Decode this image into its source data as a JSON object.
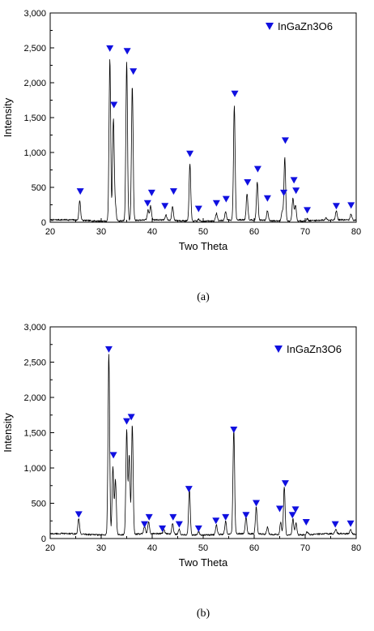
{
  "colors": {
    "marker": "#1010e0",
    "line": "#000000",
    "axis": "#000000"
  },
  "chart_data": [
    {
      "type": "line",
      "caption": "(a)",
      "xlabel": "Two Theta",
      "ylabel": "Intensity",
      "xlim": [
        20,
        80
      ],
      "ylim": [
        0,
        3000
      ],
      "xticks": [
        "20",
        "30",
        "40",
        "50",
        "60",
        "70",
        "80"
      ],
      "yticks": [
        "0",
        "500",
        "1,000",
        "1,500",
        "2,000",
        "2,500",
        "3,000"
      ],
      "legend": {
        "label": "InGaZn3O6",
        "marker": "down-triangle",
        "placement": "top-right"
      },
      "series": [
        {
          "baseline": 25,
          "peaks": [
            [
              25.8,
              280
            ],
            [
              31.7,
              2330
            ],
            [
              32.4,
              1460
            ],
            [
              32.8,
              200
            ],
            [
              35.0,
              2270
            ],
            [
              36.1,
              1930
            ],
            [
              39.2,
              140
            ],
            [
              39.7,
              200
            ],
            [
              42.7,
              70
            ],
            [
              44.0,
              200
            ],
            [
              47.4,
              820
            ],
            [
              49.1,
              30
            ],
            [
              52.6,
              110
            ],
            [
              54.4,
              130
            ],
            [
              56.1,
              1630
            ],
            [
              58.6,
              380
            ],
            [
              60.6,
              550
            ],
            [
              62.6,
              140
            ],
            [
              65.5,
              150
            ],
            [
              66.0,
              910
            ],
            [
              67.6,
              330
            ],
            [
              68.1,
              230
            ],
            [
              70.4,
              30
            ],
            [
              74.1,
              30
            ],
            [
              76.1,
              130
            ],
            [
              79.0,
              90
            ]
          ]
        }
      ],
      "markers": [
        [
          25.9,
          440
        ],
        [
          31.7,
          2490
        ],
        [
          32.5,
          1680
        ],
        [
          35.1,
          2450
        ],
        [
          36.3,
          2160
        ],
        [
          39.1,
          270
        ],
        [
          39.9,
          420
        ],
        [
          42.5,
          230
        ],
        [
          44.2,
          440
        ],
        [
          47.4,
          980
        ],
        [
          49.1,
          190
        ],
        [
          52.6,
          270
        ],
        [
          54.5,
          330
        ],
        [
          56.2,
          1840
        ],
        [
          58.7,
          570
        ],
        [
          60.7,
          760
        ],
        [
          62.6,
          340
        ],
        [
          65.8,
          420
        ],
        [
          66.1,
          1170
        ],
        [
          67.8,
          600
        ],
        [
          68.2,
          450
        ],
        [
          70.4,
          170
        ],
        [
          76.1,
          230
        ],
        [
          79.0,
          240
        ]
      ]
    },
    {
      "type": "line",
      "caption": "(b)",
      "xlabel": "Two Theta",
      "ylabel": "Intensity",
      "xlim": [
        20,
        80
      ],
      "ylim": [
        0,
        3000
      ],
      "xticks": [
        "20",
        "30",
        "40",
        "50",
        "60",
        "70",
        "80"
      ],
      "yticks": [
        "0",
        "500",
        "1,000",
        "1,500",
        "2,000",
        "2,500",
        "3,000"
      ],
      "legend": {
        "label": "InGaZn3O6",
        "marker": "down-triangle",
        "placement": "top-right"
      },
      "series": [
        {
          "baseline": 60,
          "peaks": [
            [
              25.6,
              220
            ],
            [
              31.5,
              2560
            ],
            [
              32.3,
              960
            ],
            [
              32.8,
              780
            ],
            [
              35.0,
              1480
            ],
            [
              35.5,
              1120
            ],
            [
              36.1,
              1550
            ],
            [
              38.5,
              110
            ],
            [
              39.3,
              170
            ],
            [
              42.3,
              60
            ],
            [
              44.0,
              150
            ],
            [
              45.3,
              70
            ],
            [
              47.3,
              640
            ],
            [
              49.1,
              50
            ],
            [
              52.6,
              140
            ],
            [
              54.4,
              180
            ],
            [
              56.0,
              1490
            ],
            [
              58.4,
              240
            ],
            [
              60.4,
              380
            ],
            [
              62.6,
              100
            ],
            [
              65.2,
              180
            ],
            [
              65.9,
              680
            ],
            [
              67.6,
              230
            ],
            [
              68.2,
              180
            ],
            [
              70.4,
              40
            ],
            [
              76.0,
              60
            ],
            [
              78.9,
              60
            ]
          ]
        }
      ],
      "markers": [
        [
          25.6,
          340
        ],
        [
          31.5,
          2680
        ],
        [
          32.4,
          1180
        ],
        [
          35.0,
          1660
        ],
        [
          35.9,
          1720
        ],
        [
          38.5,
          200
        ],
        [
          39.4,
          300
        ],
        [
          42.0,
          140
        ],
        [
          44.1,
          300
        ],
        [
          45.3,
          200
        ],
        [
          47.2,
          700
        ],
        [
          49.1,
          140
        ],
        [
          52.5,
          250
        ],
        [
          54.4,
          300
        ],
        [
          56.0,
          1540
        ],
        [
          58.4,
          330
        ],
        [
          60.4,
          500
        ],
        [
          65.0,
          420
        ],
        [
          66.1,
          780
        ],
        [
          67.5,
          330
        ],
        [
          68.1,
          410
        ],
        [
          70.2,
          230
        ],
        [
          75.9,
          200
        ],
        [
          78.9,
          210
        ]
      ]
    }
  ]
}
